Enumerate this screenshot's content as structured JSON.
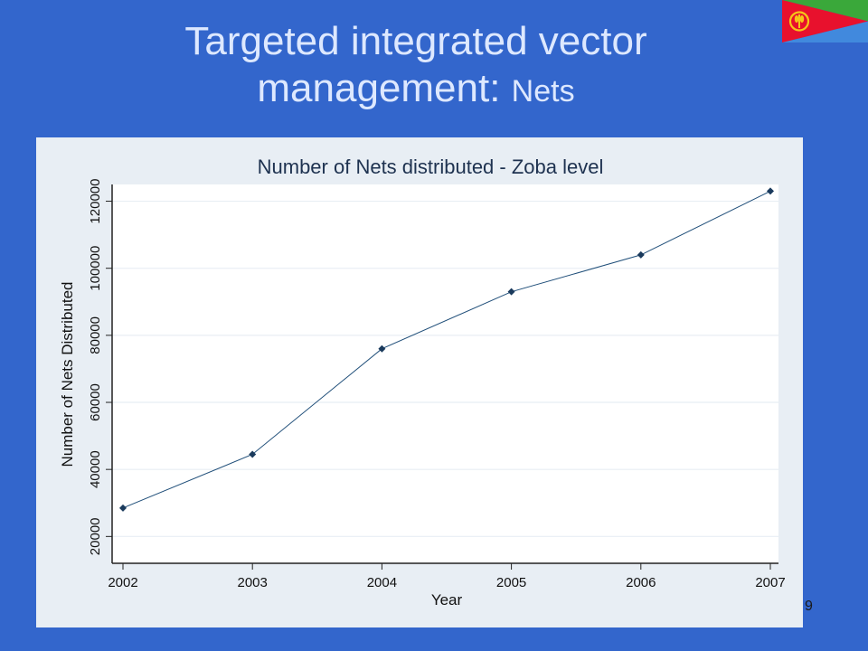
{
  "slide": {
    "title_main": "Targeted integrated vector management: ",
    "title_small": "Nets",
    "page_number": "9"
  },
  "colors": {
    "background": "#3366cc",
    "title_text": "#dde8ff",
    "line": "#1f4e79",
    "marker": "#1a3a5c"
  },
  "flag": {
    "icon": "eritrea-flag-icon",
    "colors": {
      "green": "#3aa83a",
      "red": "#e8112d",
      "blue": "#4189dd",
      "emblem": "#f5c518"
    }
  },
  "chart_data": {
    "type": "line",
    "title": "Number of Nets distributed - Zoba level",
    "xlabel": "Year",
    "ylabel": "Number of Nets Distributed",
    "x": [
      2002,
      2003,
      2004,
      2005,
      2006,
      2007
    ],
    "values": [
      28500,
      44500,
      76000,
      93000,
      104000,
      123000
    ],
    "xlim": [
      2002,
      2007
    ],
    "ylim": [
      20000,
      120000
    ],
    "yticks": [
      20000,
      40000,
      60000,
      80000,
      100000,
      120000
    ],
    "xticks": [
      2002,
      2003,
      2004,
      2005,
      2006,
      2007
    ],
    "grid": true,
    "legend": "none"
  }
}
